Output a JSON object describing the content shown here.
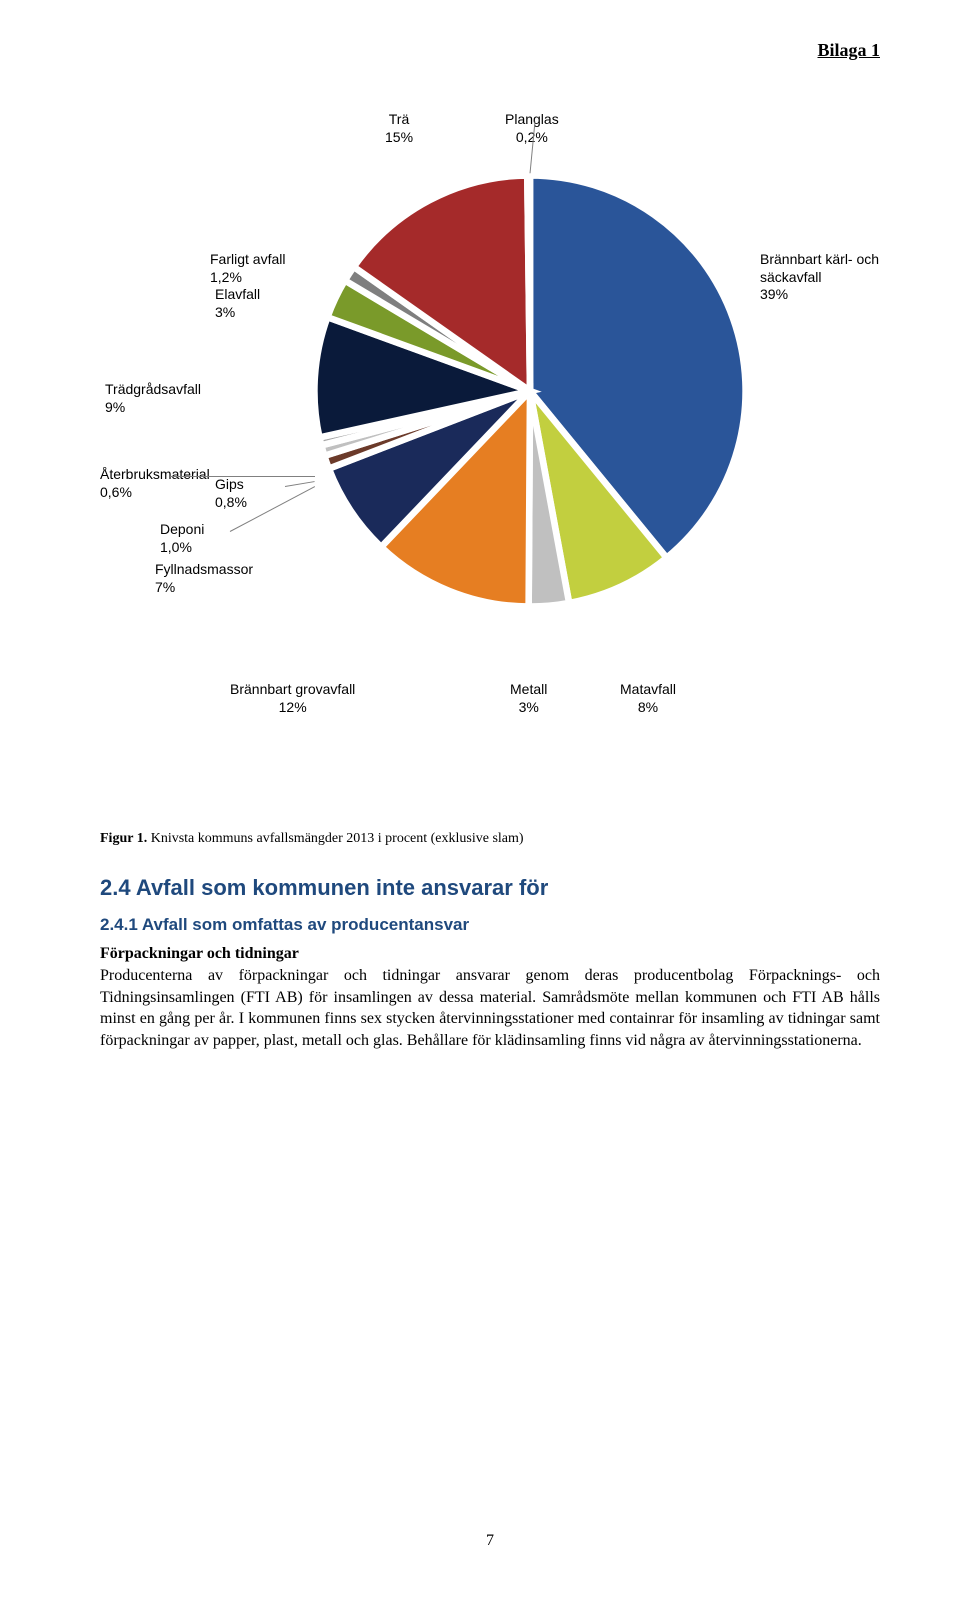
{
  "header": {
    "bilaga": "Bilaga 1"
  },
  "chart": {
    "type": "pie",
    "background_color": "#ffffff",
    "stroke_color": "#ffffff",
    "stroke_width": 1.5,
    "label_fontsize": 14,
    "label_font": "Arial",
    "slices": [
      {
        "label_line1": "Brännbart kärl- och",
        "label_line2": "säckavfall",
        "label_line3": "39%",
        "value": 39,
        "color": "#2a5599"
      },
      {
        "label_line1": "Matavfall",
        "label_line2": "8%",
        "value": 8,
        "color": "#c2cf3f"
      },
      {
        "label_line1": "Metall",
        "label_line2": "3%",
        "value": 3,
        "color": "#c0c0c0"
      },
      {
        "label_line1": "Brännbart grovavfall",
        "label_line2": "12%",
        "value": 12,
        "color": "#e67e22"
      },
      {
        "label_line1": "Fyllnadsmassor",
        "label_line2": "7%",
        "value": 7,
        "color": "#1a2a5a"
      },
      {
        "label_line1": "Deponi",
        "label_line2": "1,0%",
        "value": 1.0,
        "color": "#6b3a2a"
      },
      {
        "label_line1": "Gips",
        "label_line2": "0,8%",
        "value": 0.8,
        "color": "#c0c0c0"
      },
      {
        "label_line1": "Återbruksmaterial",
        "label_line2": "0,6%",
        "value": 0.6,
        "color": "#a6a6a6"
      },
      {
        "label_line1": "Trädgrådsavfall",
        "label_line2": "9%",
        "value": 9,
        "color": "#0a1a3a"
      },
      {
        "label_line1": "Elavfall",
        "label_line2": "3%",
        "value": 3,
        "color": "#7a9a2a"
      },
      {
        "label_line1": "Farligt avfall",
        "label_line2": "1,2%",
        "value": 1.2,
        "color": "#7f7f7f"
      },
      {
        "label_line1": "Trä",
        "label_line2": "15%",
        "value": 15,
        "color": "#a52a2a"
      },
      {
        "label_line1": "Planglas",
        "label_line2": "0,2%",
        "value": 0.2,
        "color": "#5a1a1a"
      }
    ]
  },
  "caption": {
    "fig": "Figur 1.",
    "text": " Knivsta kommuns avfallsmängder 2013 i procent (exklusive slam)"
  },
  "section": {
    "h2": "2.4  Avfall som kommunen inte ansvarar för",
    "h3": "2.4.1  Avfall som omfattas av producentansvar",
    "subhead": "Förpackningar och tidningar",
    "body": "Producenterna av förpackningar och tidningar ansvarar genom deras producentbolag Förpacknings- och Tidningsinsamlingen (FTI AB) för insamlingen av dessa material. Samrådsmöte mellan kommunen och FTI AB hålls minst en gång per år. I kommunen finns sex stycken återvinningsstationer med containrar för insamling av tidningar samt förpackningar av papper, plast, metall och glas. Behållare för klädinsamling finns vid några av återvinningsstationerna."
  },
  "page_number": "7"
}
